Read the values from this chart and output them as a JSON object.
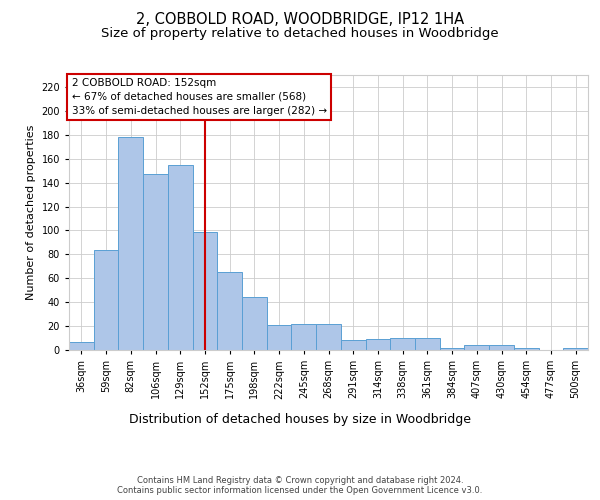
{
  "title1": "2, COBBOLD ROAD, WOODBRIDGE, IP12 1HA",
  "title2": "Size of property relative to detached houses in Woodbridge",
  "xlabel": "Distribution of detached houses by size in Woodbridge",
  "ylabel": "Number of detached properties",
  "footnote": "Contains HM Land Registry data © Crown copyright and database right 2024.\nContains public sector information licensed under the Open Government Licence v3.0.",
  "categories": [
    "36sqm",
    "59sqm",
    "82sqm",
    "106sqm",
    "129sqm",
    "152sqm",
    "175sqm",
    "198sqm",
    "222sqm",
    "245sqm",
    "268sqm",
    "291sqm",
    "314sqm",
    "338sqm",
    "361sqm",
    "384sqm",
    "407sqm",
    "430sqm",
    "454sqm",
    "477sqm",
    "500sqm"
  ],
  "values": [
    7,
    84,
    178,
    147,
    155,
    99,
    65,
    44,
    21,
    22,
    22,
    8,
    9,
    10,
    10,
    2,
    4,
    4,
    2,
    0,
    2
  ],
  "bar_color": "#aec6e8",
  "bar_edge_color": "#5a9fd4",
  "vline_x": 5,
  "vline_color": "#cc0000",
  "annotation_text": "2 COBBOLD ROAD: 152sqm\n← 67% of detached houses are smaller (568)\n33% of semi-detached houses are larger (282) →",
  "annotation_box_color": "#ffffff",
  "annotation_box_edge_color": "#cc0000",
  "ylim": [
    0,
    230
  ],
  "yticks": [
    0,
    20,
    40,
    60,
    80,
    100,
    120,
    140,
    160,
    180,
    200,
    220
  ],
  "bg_color": "#ffffff",
  "grid_color": "#cccccc",
  "title1_fontsize": 10.5,
  "title2_fontsize": 9.5,
  "xlabel_fontsize": 9,
  "ylabel_fontsize": 8,
  "tick_fontsize": 7,
  "annot_fontsize": 7.5,
  "footnote_fontsize": 6
}
